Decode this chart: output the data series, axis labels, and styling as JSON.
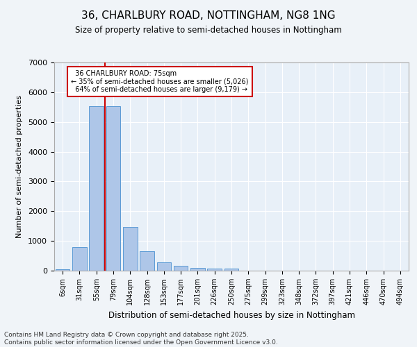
{
  "title": "36, CHARLBURY ROAD, NOTTINGHAM, NG8 1NG",
  "subtitle": "Size of property relative to semi-detached houses in Nottingham",
  "xlabel": "Distribution of semi-detached houses by size in Nottingham",
  "ylabel": "Number of semi-detached properties",
  "categories": [
    "6sqm",
    "31sqm",
    "55sqm",
    "79sqm",
    "104sqm",
    "128sqm",
    "153sqm",
    "177sqm",
    "201sqm",
    "226sqm",
    "250sqm",
    "275sqm",
    "299sqm",
    "323sqm",
    "348sqm",
    "372sqm",
    "397sqm",
    "421sqm",
    "446sqm",
    "470sqm",
    "494sqm"
  ],
  "values": [
    55,
    800,
    5520,
    5520,
    1480,
    660,
    270,
    155,
    100,
    65,
    65,
    0,
    0,
    0,
    0,
    0,
    0,
    0,
    0,
    0,
    0
  ],
  "bar_color": "#aec6e8",
  "bar_edge_color": "#5b9bd5",
  "property_label": "36 CHARLBURY ROAD: 75sqm",
  "smaller_pct": "35%",
  "smaller_n": "5,026",
  "larger_pct": "64%",
  "larger_n": "9,179",
  "annotation_box_color": "#ffffff",
  "annotation_box_edge": "#cc0000",
  "line_color": "#cc0000",
  "ylim": [
    0,
    7000
  ],
  "yticks": [
    0,
    1000,
    2000,
    3000,
    4000,
    5000,
    6000,
    7000
  ],
  "background_color": "#e8f0f8",
  "grid_color": "#ffffff",
  "footer_line1": "Contains HM Land Registry data © Crown copyright and database right 2025.",
  "footer_line2": "Contains public sector information licensed under the Open Government Licence v3.0."
}
